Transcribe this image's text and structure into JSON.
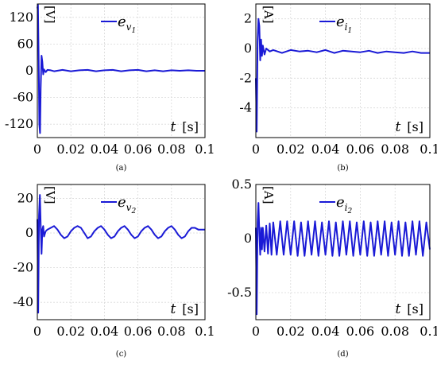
{
  "chart_data": [
    {
      "type": "line",
      "caption": "(a)",
      "ylabel": "[V]",
      "xlabel_var": "t",
      "xlabel_unit": "[s]",
      "legend_base": "e",
      "legend_sub": "v",
      "legend_subsub": "1",
      "color": "#1a1ad6",
      "xlim": [
        0,
        0.1
      ],
      "ylim": [
        -150,
        150
      ],
      "xticks": [
        0,
        0.02,
        0.04,
        0.06,
        0.08,
        0.1
      ],
      "xtick_labels": [
        "0",
        "0.02",
        "0.04",
        "0.06",
        "0.08",
        "0.1"
      ],
      "yticks": [
        -120,
        -60,
        0,
        60,
        120
      ],
      "ytick_labels": [
        "-120",
        "-60",
        "0",
        "60",
        "120"
      ],
      "grid": true,
      "legend_position": "top-center",
      "series": [
        {
          "x": [
            0,
            0.0004,
            0.0008,
            0.0012,
            0.0016,
            0.002,
            0.0025,
            0.003,
            0.0035,
            0.004,
            0.005,
            0.006,
            0.008,
            0.01,
            0.015,
            0.02,
            0.025,
            0.03,
            0.035,
            0.04,
            0.045,
            0.05,
            0.055,
            0.06,
            0.065,
            0.07,
            0.075,
            0.08,
            0.085,
            0.09,
            0.095,
            0.1
          ],
          "y": [
            140,
            148,
            20,
            -120,
            -140,
            -40,
            34,
            20,
            -8,
            3,
            -3,
            2,
            1,
            -1,
            2,
            -1,
            1,
            2,
            -1,
            1,
            2,
            -1,
            1,
            2,
            -1,
            1,
            -1,
            1,
            0,
            1,
            0,
            0
          ]
        }
      ]
    },
    {
      "type": "line",
      "caption": "(b)",
      "ylabel": "[A]",
      "xlabel_var": "t",
      "xlabel_unit": "[s]",
      "legend_base": "e",
      "legend_sub": "i",
      "legend_subsub": "1",
      "color": "#1a1ad6",
      "xlim": [
        0,
        0.1
      ],
      "ylim": [
        -6,
        3
      ],
      "xticks": [
        0,
        0.02,
        0.04,
        0.06,
        0.08,
        0.1
      ],
      "xtick_labels": [
        "0",
        "0.02",
        "0.04",
        "0.06",
        "0.08",
        "0.1"
      ],
      "yticks": [
        -4,
        -2,
        0,
        2
      ],
      "ytick_labels": [
        "-4",
        "-2",
        "0",
        "2"
      ],
      "grid": true,
      "legend_position": "top-center",
      "series": [
        {
          "x": [
            0,
            0.0005,
            0.001,
            0.0015,
            0.002,
            0.0025,
            0.003,
            0.0035,
            0.004,
            0.005,
            0.006,
            0.008,
            0.01,
            0.015,
            0.02,
            0.025,
            0.03,
            0.035,
            0.04,
            0.045,
            0.05,
            0.055,
            0.06,
            0.065,
            0.07,
            0.075,
            0.08,
            0.085,
            0.09,
            0.095,
            0.1
          ],
          "y": [
            -2,
            -5.6,
            0.5,
            2,
            1.5,
            -0.8,
            0.6,
            -0.5,
            0.2,
            -0.4,
            0,
            -0.2,
            -0.1,
            -0.3,
            -0.1,
            -0.2,
            -0.15,
            -0.25,
            -0.1,
            -0.3,
            -0.15,
            -0.2,
            -0.25,
            -0.15,
            -0.3,
            -0.2,
            -0.25,
            -0.3,
            -0.2,
            -0.3,
            -0.3
          ]
        }
      ]
    },
    {
      "type": "line",
      "caption": "(c)",
      "ylabel": "[V]",
      "xlabel_var": "t",
      "xlabel_unit": "[s]",
      "legend_base": "e",
      "legend_sub": "v",
      "legend_subsub": "2",
      "color": "#1a1ad6",
      "xlim": [
        0,
        0.1
      ],
      "ylim": [
        -50,
        28
      ],
      "xticks": [
        0,
        0.02,
        0.04,
        0.06,
        0.08,
        0.1
      ],
      "xtick_labels": [
        "0",
        "0.02",
        "0.04",
        "0.06",
        "0.08",
        "0.1"
      ],
      "yticks": [
        -40,
        -20,
        0,
        20
      ],
      "ytick_labels": [
        "-40",
        "-20",
        "0",
        "20"
      ],
      "grid": true,
      "legend_position": "top-center",
      "series": [
        {
          "x": [
            0,
            0.0005,
            0.001,
            0.0015,
            0.002,
            0.0025,
            0.003,
            0.0035,
            0.004,
            0.005,
            0.006,
            0.008,
            0.01,
            0.012,
            0.014,
            0.016,
            0.018,
            0.02,
            0.022,
            0.024,
            0.026,
            0.028,
            0.03,
            0.032,
            0.034,
            0.036,
            0.038,
            0.04,
            0.042,
            0.044,
            0.046,
            0.048,
            0.05,
            0.052,
            0.054,
            0.056,
            0.058,
            0.06,
            0.062,
            0.064,
            0.066,
            0.068,
            0.07,
            0.072,
            0.074,
            0.076,
            0.078,
            0.08,
            0.082,
            0.084,
            0.086,
            0.088,
            0.09,
            0.092,
            0.094,
            0.096,
            0.098,
            0.1
          ],
          "y": [
            8,
            -46,
            10,
            22,
            5,
            -12,
            2,
            4,
            -2,
            1,
            2,
            3,
            4,
            2,
            -1,
            -3,
            -2,
            1,
            3,
            4,
            3,
            0,
            -3,
            -2,
            1,
            3,
            4,
            2,
            -1,
            -3,
            -2,
            1,
            3,
            4,
            2,
            -1,
            -3,
            -2,
            1,
            3,
            4,
            2,
            -1,
            -3,
            -2,
            1,
            3,
            4,
            2,
            -1,
            -3,
            -2,
            1,
            3,
            3,
            2,
            2,
            2
          ]
        }
      ]
    },
    {
      "type": "line",
      "caption": "(d)",
      "ylabel": "[A]",
      "xlabel_var": "t",
      "xlabel_unit": "[s]",
      "legend_base": "e",
      "legend_sub": "i",
      "legend_subsub": "2",
      "color": "#1a1ad6",
      "xlim": [
        0,
        0.1
      ],
      "ylim": [
        -0.75,
        0.5
      ],
      "xticks": [
        0,
        0.02,
        0.04,
        0.06,
        0.08,
        0.1
      ],
      "xtick_labels": [
        "0",
        "0.02",
        "0.04",
        "0.06",
        "0.08",
        "0.1"
      ],
      "yticks": [
        -0.5,
        0,
        0.5
      ],
      "ytick_labels": [
        "-0.5",
        "0",
        "0.5"
      ],
      "grid": true,
      "legend_position": "top-center",
      "series": [
        {
          "x": [
            0,
            0.0005,
            0.001,
            0.0015,
            0.002,
            0.0025,
            0.003,
            0.0035,
            0.004,
            0.005,
            0.006,
            0.007,
            0.008,
            0.009,
            0.01,
            0.012,
            0.014,
            0.016,
            0.018,
            0.02,
            0.022,
            0.024,
            0.026,
            0.028,
            0.03,
            0.032,
            0.034,
            0.036,
            0.038,
            0.04,
            0.042,
            0.044,
            0.046,
            0.048,
            0.05,
            0.052,
            0.054,
            0.056,
            0.058,
            0.06,
            0.062,
            0.064,
            0.066,
            0.068,
            0.07,
            0.072,
            0.074,
            0.076,
            0.078,
            0.08,
            0.082,
            0.084,
            0.086,
            0.088,
            0.09,
            0.092,
            0.094,
            0.096,
            0.098,
            0.1
          ],
          "y": [
            0.1,
            -0.7,
            0.15,
            0.33,
            0.05,
            -0.15,
            0.1,
            -0.1,
            0.1,
            -0.12,
            0.12,
            -0.14,
            0.14,
            -0.15,
            0.15,
            -0.15,
            0.16,
            -0.15,
            0.16,
            -0.15,
            0.16,
            -0.16,
            0.15,
            -0.16,
            0.16,
            -0.15,
            0.16,
            -0.16,
            0.15,
            -0.15,
            0.16,
            -0.16,
            0.15,
            -0.16,
            0.16,
            -0.15,
            0.16,
            -0.16,
            0.15,
            -0.15,
            0.16,
            -0.16,
            0.15,
            -0.16,
            0.16,
            -0.15,
            0.16,
            -0.16,
            0.15,
            -0.15,
            0.16,
            -0.16,
            0.15,
            -0.16,
            0.16,
            -0.15,
            0.16,
            -0.16,
            0.15,
            -0.1
          ]
        }
      ]
    }
  ]
}
